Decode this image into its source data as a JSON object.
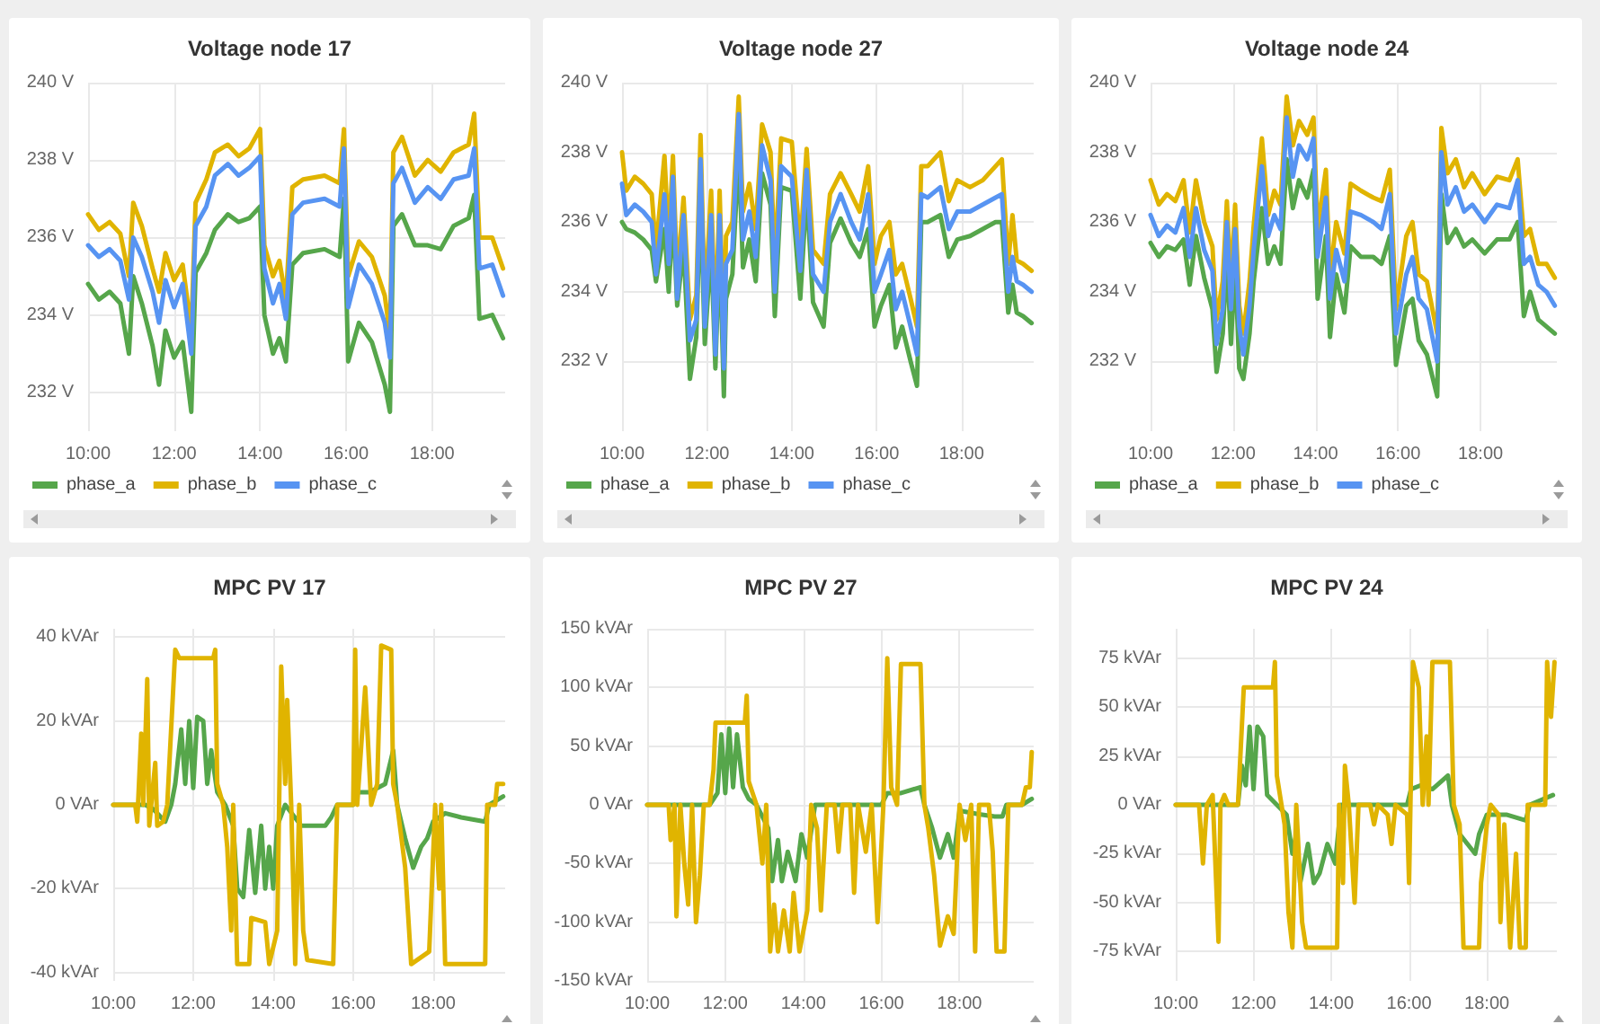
{
  "chart_data": [
    {
      "type": "line",
      "title": "Voltage node 17",
      "legend": "bottom",
      "grid": true,
      "xlim": [
        10,
        19.7
      ],
      "ylim": [
        231,
        240
      ],
      "xticks": [
        {
          "value": 10,
          "label": "10:00"
        },
        {
          "value": 12,
          "label": "12:00"
        },
        {
          "value": 14,
          "label": "14:00"
        },
        {
          "value": 16,
          "label": "16:00"
        },
        {
          "value": 18,
          "label": "18:00"
        }
      ],
      "yticks": [
        {
          "value": 232,
          "label": "232 V"
        },
        {
          "value": 234,
          "label": "234 V"
        },
        {
          "value": 236,
          "label": "236 V"
        },
        {
          "value": 238,
          "label": "238 V"
        },
        {
          "value": 240,
          "label": "240 V"
        }
      ],
      "x": [
        10,
        10.25,
        10.5,
        10.75,
        10.95,
        11.05,
        11.25,
        11.5,
        11.65,
        11.8,
        12,
        12.2,
        12.4,
        12.5,
        12.75,
        12.95,
        13.25,
        13.5,
        13.75,
        14,
        14.1,
        14.3,
        14.45,
        14.6,
        14.75,
        15,
        15.5,
        15.85,
        15.95,
        16.05,
        16.3,
        16.6,
        16.9,
        17.02,
        17.1,
        17.3,
        17.6,
        17.9,
        18.2,
        18.5,
        18.85,
        18.98,
        19.1,
        19.4,
        19.65
      ],
      "series": [
        {
          "name": "phase_a",
          "color": "#56a64b",
          "values": [
            234.8,
            234.4,
            234.6,
            234.3,
            233.0,
            235.0,
            234.3,
            233.2,
            232.2,
            233.6,
            232.9,
            233.3,
            231.5,
            235.1,
            235.6,
            236.2,
            236.6,
            236.4,
            236.5,
            236.8,
            234.0,
            233.0,
            233.4,
            232.8,
            235.3,
            235.6,
            235.7,
            235.5,
            237.0,
            232.8,
            233.8,
            233.3,
            232.2,
            231.5,
            236.3,
            236.6,
            235.8,
            235.8,
            235.7,
            236.3,
            236.5,
            237.1,
            233.9,
            234.0,
            233.4
          ]
        },
        {
          "name": "phase_b",
          "color": "#e0b400",
          "values": [
            236.6,
            236.2,
            236.4,
            236.1,
            235.0,
            236.9,
            236.3,
            235.2,
            234.6,
            235.6,
            234.9,
            235.3,
            233.6,
            236.9,
            237.5,
            238.2,
            238.4,
            238.1,
            238.3,
            238.8,
            235.8,
            235.0,
            235.4,
            234.4,
            237.3,
            237.5,
            237.6,
            237.4,
            238.8,
            235.0,
            235.9,
            235.5,
            234.5,
            233.5,
            238.2,
            238.6,
            237.6,
            238.0,
            237.7,
            238.2,
            238.4,
            239.2,
            236.0,
            236.0,
            235.2
          ]
        },
        {
          "name": "phase_c",
          "color": "#5794f2",
          "values": [
            235.8,
            235.5,
            235.7,
            235.4,
            234.4,
            236.0,
            235.5,
            234.6,
            233.8,
            234.9,
            234.2,
            234.8,
            233.0,
            236.3,
            236.8,
            237.6,
            237.9,
            237.6,
            237.8,
            238.1,
            235.2,
            234.3,
            234.8,
            233.9,
            236.6,
            236.9,
            237.0,
            236.8,
            238.3,
            234.2,
            235.3,
            234.8,
            233.8,
            232.9,
            237.4,
            237.8,
            236.9,
            237.3,
            237.0,
            237.5,
            237.6,
            238.3,
            235.2,
            235.3,
            234.5
          ]
        }
      ]
    },
    {
      "type": "line",
      "title": "Voltage node 27",
      "legend": "bottom",
      "grid": true,
      "xlim": [
        10,
        19.7
      ],
      "ylim": [
        230,
        240
      ],
      "xticks": [
        {
          "value": 10,
          "label": "10:00"
        },
        {
          "value": 12,
          "label": "12:00"
        },
        {
          "value": 14,
          "label": "14:00"
        },
        {
          "value": 16,
          "label": "16:00"
        },
        {
          "value": 18,
          "label": "18:00"
        }
      ],
      "yticks": [
        {
          "value": 232,
          "label": "232 V"
        },
        {
          "value": 234,
          "label": "234 V"
        },
        {
          "value": 236,
          "label": "236 V"
        },
        {
          "value": 238,
          "label": "238 V"
        },
        {
          "value": 240,
          "label": "240 V"
        }
      ],
      "x": [
        10,
        10.1,
        10.3,
        10.5,
        10.7,
        10.8,
        11.0,
        11.1,
        11.2,
        11.3,
        11.45,
        11.6,
        11.75,
        11.85,
        11.95,
        12.1,
        12.2,
        12.3,
        12.4,
        12.45,
        12.6,
        12.75,
        12.85,
        13.0,
        13.15,
        13.3,
        13.5,
        13.6,
        13.75,
        14.0,
        14.2,
        14.35,
        14.5,
        14.75,
        14.9,
        15.15,
        15.4,
        15.6,
        15.8,
        15.95,
        16.1,
        16.3,
        16.45,
        16.6,
        16.8,
        16.95,
        17.05,
        17.2,
        17.5,
        17.7,
        17.9,
        18.2,
        18.5,
        18.8,
        18.95,
        19.1,
        19.2,
        19.3,
        19.45,
        19.65
      ],
      "series": [
        {
          "name": "phase_a",
          "color": "#56a64b",
          "values": [
            236.0,
            235.8,
            235.7,
            235.5,
            235.2,
            234.3,
            235.8,
            234.0,
            236.3,
            233.6,
            235.3,
            231.5,
            232.7,
            236.8,
            232.5,
            235.3,
            231.8,
            235.4,
            231.0,
            233.8,
            234.5,
            238.0,
            234.7,
            235.5,
            234.3,
            237.4,
            236.5,
            233.3,
            237.0,
            236.9,
            233.8,
            236.9,
            233.7,
            233.0,
            235.4,
            236.1,
            235.4,
            235.0,
            235.8,
            233.0,
            233.6,
            234.2,
            232.4,
            233.0,
            232.0,
            231.3,
            236.0,
            236.0,
            236.2,
            235.0,
            235.5,
            235.6,
            235.8,
            236.0,
            236.0,
            233.4,
            234.2,
            233.4,
            233.3,
            233.1
          ]
        },
        {
          "name": "phase_b",
          "color": "#e0b400",
          "values": [
            238.0,
            236.9,
            237.3,
            237.1,
            236.8,
            235.2,
            237.9,
            235.5,
            237.9,
            234.4,
            236.7,
            233.2,
            233.9,
            238.5,
            233.6,
            236.9,
            232.9,
            236.9,
            232.4,
            235.6,
            236.0,
            239.6,
            236.3,
            237.1,
            235.8,
            238.8,
            238.0,
            234.8,
            238.4,
            238.3,
            235.3,
            238.1,
            235.2,
            234.8,
            236.8,
            237.4,
            236.8,
            236.3,
            237.6,
            234.8,
            235.6,
            236.0,
            234.5,
            234.8,
            233.8,
            233.0,
            237.6,
            237.6,
            238.0,
            236.6,
            237.2,
            237.0,
            237.2,
            237.6,
            237.8,
            234.8,
            236.2,
            234.9,
            234.8,
            234.6
          ]
        },
        {
          "name": "phase_c",
          "color": "#5794f2",
          "values": [
            237.1,
            236.2,
            236.5,
            236.3,
            236.0,
            234.5,
            236.8,
            234.8,
            237.3,
            233.8,
            236.2,
            232.6,
            233.2,
            237.8,
            233.0,
            236.2,
            232.2,
            236.2,
            231.8,
            234.8,
            235.2,
            239.1,
            235.5,
            236.3,
            235.0,
            238.2,
            237.2,
            234.0,
            237.6,
            237.3,
            234.6,
            237.5,
            234.5,
            234.0,
            236.0,
            236.8,
            236.0,
            235.5,
            236.8,
            234.0,
            234.5,
            235.2,
            233.5,
            234.0,
            233.0,
            232.2,
            236.8,
            236.7,
            237.0,
            235.8,
            236.3,
            236.3,
            236.5,
            236.7,
            236.8,
            234.0,
            235.0,
            234.3,
            234.2,
            234.0
          ]
        }
      ]
    },
    {
      "type": "line",
      "title": "Voltage node 24",
      "legend": "bottom",
      "grid": true,
      "xlim": [
        10,
        19.85
      ],
      "ylim": [
        230,
        240
      ],
      "xticks": [
        {
          "value": 10,
          "label": "10:00"
        },
        {
          "value": 12,
          "label": "12:00"
        },
        {
          "value": 14,
          "label": "14:00"
        },
        {
          "value": 16,
          "label": "16:00"
        },
        {
          "value": 18,
          "label": "18:00"
        }
      ],
      "yticks": [
        {
          "value": 232,
          "label": "232 V"
        },
        {
          "value": 234,
          "label": "234 V"
        },
        {
          "value": 236,
          "label": "236 V"
        },
        {
          "value": 238,
          "label": "238 V"
        },
        {
          "value": 240,
          "label": "240 V"
        }
      ],
      "x": [
        10,
        10.2,
        10.4,
        10.6,
        10.8,
        10.95,
        11.1,
        11.3,
        11.5,
        11.6,
        11.75,
        11.85,
        11.95,
        12.05,
        12.15,
        12.25,
        12.4,
        12.5,
        12.7,
        12.85,
        13.0,
        13.15,
        13.3,
        13.45,
        13.6,
        13.8,
        13.95,
        14.05,
        14.25,
        14.35,
        14.5,
        14.7,
        14.85,
        15.1,
        15.4,
        15.6,
        15.8,
        15.95,
        16.2,
        16.35,
        16.5,
        16.7,
        16.95,
        17.05,
        17.2,
        17.4,
        17.6,
        17.8,
        18.1,
        18.4,
        18.7,
        18.9,
        19.05,
        19.2,
        19.4,
        19.6,
        19.8
      ],
      "series": [
        {
          "name": "phase_a",
          "color": "#56a64b",
          "values": [
            235.4,
            235.0,
            235.3,
            235.2,
            235.5,
            234.2,
            235.6,
            234.4,
            233.5,
            231.7,
            232.8,
            235.0,
            232.5,
            234.9,
            231.8,
            231.5,
            232.8,
            234.3,
            236.4,
            234.8,
            235.3,
            234.8,
            237.8,
            236.4,
            237.2,
            236.7,
            237.5,
            233.8,
            235.6,
            232.7,
            234.5,
            233.4,
            235.3,
            235.0,
            235.0,
            234.8,
            235.6,
            231.9,
            233.6,
            233.8,
            232.6,
            232.2,
            231.0,
            236.8,
            235.4,
            235.8,
            235.3,
            235.5,
            235.1,
            235.5,
            235.5,
            236.0,
            233.3,
            234.0,
            233.2,
            233.0,
            232.8
          ]
        },
        {
          "name": "phase_b",
          "color": "#e0b400",
          "values": [
            237.2,
            236.5,
            236.8,
            236.6,
            237.2,
            235.7,
            237.2,
            236.0,
            235.3,
            233.2,
            234.3,
            236.6,
            234.2,
            236.5,
            233.6,
            232.8,
            234.3,
            235.9,
            238.4,
            236.2,
            236.9,
            236.5,
            239.6,
            238.2,
            238.9,
            238.5,
            239.0,
            235.8,
            237.5,
            234.4,
            236.0,
            235.1,
            237.1,
            236.9,
            236.7,
            236.6,
            237.5,
            233.5,
            235.6,
            236.0,
            234.5,
            234.3,
            232.8,
            238.7,
            237.4,
            237.8,
            237.0,
            237.4,
            236.8,
            237.3,
            237.2,
            237.8,
            235.6,
            235.8,
            234.8,
            234.8,
            234.4
          ]
        },
        {
          "name": "phase_c",
          "color": "#5794f2",
          "values": [
            236.2,
            235.6,
            235.9,
            235.7,
            236.4,
            235.0,
            236.4,
            235.2,
            234.6,
            232.5,
            233.5,
            236.0,
            233.5,
            235.8,
            233.0,
            232.2,
            233.6,
            235.2,
            237.6,
            235.6,
            236.2,
            235.8,
            239.0,
            237.3,
            238.2,
            237.8,
            238.4,
            235.0,
            236.7,
            233.8,
            235.2,
            234.3,
            236.3,
            236.2,
            236.0,
            235.8,
            236.8,
            232.8,
            234.5,
            235.0,
            233.8,
            233.5,
            232.0,
            238.0,
            236.5,
            237.0,
            236.3,
            236.5,
            236.0,
            236.5,
            236.4,
            237.2,
            234.8,
            235.0,
            234.2,
            234.0,
            233.6
          ]
        }
      ]
    },
    {
      "type": "line",
      "title": "MPC PV 17",
      "legend": false,
      "grid": true,
      "xlim": [
        10,
        19.8
      ],
      "ylim": [
        -42,
        42
      ],
      "xticks": [
        {
          "value": 10,
          "label": "10:00"
        },
        {
          "value": 12,
          "label": "12:00"
        },
        {
          "value": 14,
          "label": "14:00"
        },
        {
          "value": 16,
          "label": "16:00"
        },
        {
          "value": 18,
          "label": "18:00"
        }
      ],
      "yticks": [
        {
          "value": -40,
          "label": "-40 kVAr"
        },
        {
          "value": -20,
          "label": "-20 kVAr"
        },
        {
          "value": 0,
          "label": "0 VAr"
        },
        {
          "value": 20,
          "label": "20 kVAr"
        },
        {
          "value": 40,
          "label": "40 kVAr"
        }
      ],
      "series": [
        {
          "color": "#56a64b",
          "x": [
            10,
            10.8,
            11.0,
            11.3,
            11.45,
            11.55,
            11.7,
            11.8,
            11.9,
            12.0,
            12.1,
            12.25,
            12.35,
            12.45,
            12.6,
            12.8,
            13.0,
            13.1,
            13.25,
            13.4,
            13.55,
            13.7,
            13.8,
            13.9,
            14.0,
            14.1,
            14.3,
            14.7,
            15.0,
            15.3,
            15.45,
            15.6,
            16.0,
            16.1,
            16.4,
            16.8,
            17.0,
            17.1,
            17.3,
            17.5,
            17.7,
            17.85,
            18.0,
            18.3,
            18.7,
            19.3,
            19.4,
            19.75
          ],
          "values": [
            0,
            0,
            -1,
            -4,
            0,
            5,
            18,
            5,
            20,
            4,
            21,
            20,
            5,
            13,
            3,
            0,
            -5,
            -20,
            -22,
            -6,
            -21,
            -5,
            -20,
            -10,
            -20,
            -5,
            0,
            -5,
            -5,
            -5,
            -3,
            0,
            0,
            3,
            3,
            5,
            13,
            0,
            -8,
            -15,
            -10,
            -8,
            -4,
            -2,
            -3,
            -4,
            0,
            2
          ]
        },
        {
          "color": "#e0b400",
          "x": [
            10,
            10.55,
            10.6,
            10.7,
            10.75,
            10.85,
            10.9,
            11.05,
            11.1,
            11.25,
            11.35,
            11.55,
            11.65,
            12.5,
            12.55,
            12.6,
            12.75,
            12.85,
            12.95,
            13.0,
            13.1,
            13.4,
            13.45,
            13.8,
            13.9,
            14.1,
            14.2,
            14.3,
            14.35,
            14.45,
            14.55,
            14.65,
            14.75,
            14.85,
            15.5,
            15.6,
            16.0,
            16.05,
            16.1,
            16.3,
            16.45,
            16.6,
            16.7,
            16.95,
            17.0,
            17.1,
            17.3,
            17.45,
            17.9,
            18.05,
            18.15,
            18.2,
            18.3,
            19.3,
            19.35,
            19.55,
            19.6,
            19.75
          ],
          "values": [
            0,
            0,
            -4,
            17,
            0,
            30,
            -5,
            10,
            -5,
            -4,
            0,
            37,
            35,
            35,
            37,
            5,
            0,
            -10,
            -30,
            0,
            -38,
            -38,
            -27,
            -28,
            -38,
            -30,
            33,
            5,
            25,
            0,
            -38,
            0,
            -30,
            -37,
            -38,
            0,
            0,
            37,
            0,
            28,
            0,
            5,
            38,
            37,
            5,
            0,
            -15,
            -38,
            -35,
            0,
            -20,
            0,
            -38,
            -38,
            0,
            0,
            5,
            5
          ]
        }
      ]
    },
    {
      "type": "line",
      "title": "MPC PV 27",
      "legend": false,
      "grid": true,
      "xlim": [
        10,
        19.9
      ],
      "ylim": [
        -150,
        150
      ],
      "xticks": [
        {
          "value": 10,
          "label": "10:00"
        },
        {
          "value": 12,
          "label": "12:00"
        },
        {
          "value": 14,
          "label": "14:00"
        },
        {
          "value": 16,
          "label": "16:00"
        },
        {
          "value": 18,
          "label": "18:00"
        }
      ],
      "yticks": [
        {
          "value": -150,
          "label": "-150 kVAr"
        },
        {
          "value": -100,
          "label": "-100 kVAr"
        },
        {
          "value": -50,
          "label": "-50 kVAr"
        },
        {
          "value": 0,
          "label": "0 VAr"
        },
        {
          "value": 50,
          "label": "50 kVAr"
        },
        {
          "value": 100,
          "label": "100 kVAr"
        },
        {
          "value": 150,
          "label": "150 kVAr"
        }
      ],
      "series": [
        {
          "color": "#56a64b",
          "x": [
            10,
            11.6,
            11.8,
            11.9,
            12.0,
            12.1,
            12.2,
            12.3,
            12.45,
            12.6,
            12.8,
            13.1,
            13.2,
            13.35,
            13.45,
            13.6,
            13.8,
            13.95,
            14.1,
            14.3,
            16.0,
            16.15,
            16.5,
            17.0,
            17.1,
            17.3,
            17.5,
            17.7,
            17.85,
            18.0,
            18.5,
            18.9,
            19.1,
            19.2,
            19.6,
            19.85
          ],
          "values": [
            0,
            0,
            10,
            60,
            10,
            65,
            15,
            60,
            15,
            5,
            0,
            -20,
            -65,
            -30,
            -65,
            -40,
            -65,
            -25,
            -45,
            0,
            0,
            10,
            10,
            15,
            0,
            -20,
            -45,
            -25,
            -45,
            -5,
            -8,
            -10,
            -10,
            0,
            0,
            5
          ]
        },
        {
          "color": "#e0b400",
          "x": [
            10,
            10.55,
            10.6,
            10.7,
            10.75,
            10.85,
            10.95,
            11.05,
            11.15,
            11.25,
            11.35,
            11.45,
            11.6,
            11.7,
            11.75,
            12.5,
            12.55,
            12.6,
            12.8,
            12.95,
            13.05,
            13.15,
            13.25,
            13.35,
            13.5,
            13.65,
            13.75,
            13.9,
            14.1,
            14.2,
            14.35,
            14.45,
            14.6,
            14.8,
            14.9,
            15.0,
            15.2,
            15.3,
            15.4,
            15.6,
            15.75,
            15.9,
            16.05,
            16.15,
            16.25,
            16.4,
            16.5,
            17.0,
            17.1,
            17.2,
            17.35,
            17.5,
            17.7,
            17.85,
            18.0,
            18.15,
            18.3,
            18.4,
            18.5,
            18.75,
            18.85,
            18.95,
            19.15,
            19.25,
            19.6,
            19.7,
            19.8,
            19.85
          ],
          "values": [
            0,
            0,
            -30,
            0,
            -95,
            0,
            -50,
            -85,
            0,
            -100,
            -60,
            0,
            0,
            30,
            70,
            70,
            93,
            20,
            0,
            -50,
            0,
            -125,
            -85,
            -125,
            -90,
            -125,
            -75,
            -125,
            -90,
            0,
            -20,
            -90,
            0,
            0,
            -40,
            0,
            0,
            -75,
            0,
            -40,
            0,
            -100,
            0,
            125,
            15,
            0,
            120,
            120,
            0,
            -20,
            -60,
            -120,
            -95,
            -110,
            0,
            -30,
            0,
            -125,
            0,
            0,
            -40,
            -125,
            -125,
            0,
            0,
            15,
            15,
            45
          ]
        }
      ]
    },
    {
      "type": "line",
      "title": "MPC PV 24",
      "legend": false,
      "grid": true,
      "xlim": [
        10,
        19.8
      ],
      "ylim": [
        -90,
        90
      ],
      "xticks": [
        {
          "value": 10,
          "label": "10:00"
        },
        {
          "value": 12,
          "label": "12:00"
        },
        {
          "value": 14,
          "label": "14:00"
        },
        {
          "value": 16,
          "label": "16:00"
        },
        {
          "value": 18,
          "label": "18:00"
        }
      ],
      "yticks": [
        {
          "value": -75,
          "label": "-75 kVAr"
        },
        {
          "value": -50,
          "label": "-50 kVAr"
        },
        {
          "value": -25,
          "label": "-25 kVAr"
        },
        {
          "value": 0,
          "label": "0 VAr"
        },
        {
          "value": 25,
          "label": "25 kVAr"
        },
        {
          "value": 50,
          "label": "50 kVAr"
        },
        {
          "value": 75,
          "label": "75 kVAr"
        }
      ],
      "series": [
        {
          "color": "#56a64b",
          "x": [
            10,
            11.6,
            11.7,
            11.8,
            11.9,
            12.0,
            12.1,
            12.25,
            12.35,
            12.6,
            12.85,
            13.0,
            13.1,
            13.2,
            13.4,
            13.55,
            13.7,
            13.9,
            14.1,
            14.25,
            15.95,
            16.05,
            16.3,
            16.6,
            17.0,
            17.1,
            17.3,
            17.5,
            17.7,
            17.8,
            18.0,
            18.5,
            19.0,
            19.1,
            19.7
          ],
          "values": [
            0,
            0,
            20,
            10,
            40,
            8,
            40,
            35,
            5,
            0,
            -5,
            -25,
            -15,
            -40,
            -20,
            -40,
            -35,
            -20,
            -30,
            0,
            0,
            8,
            10,
            8,
            15,
            0,
            -15,
            -20,
            -25,
            -15,
            -5,
            -5,
            -8,
            0,
            5
          ]
        },
        {
          "color": "#e0b400",
          "x": [
            10,
            10.6,
            10.7,
            10.8,
            10.95,
            11.0,
            11.1,
            11.15,
            11.25,
            11.35,
            11.6,
            11.75,
            12.5,
            12.55,
            12.6,
            12.8,
            12.9,
            13.0,
            13.1,
            13.25,
            13.35,
            14.15,
            14.2,
            14.3,
            14.35,
            14.45,
            14.6,
            14.7,
            15.0,
            15.1,
            15.2,
            15.45,
            15.55,
            15.65,
            15.95,
            16.0,
            16.1,
            16.25,
            16.35,
            16.45,
            16.5,
            16.6,
            17.05,
            17.15,
            17.3,
            17.4,
            17.8,
            17.85,
            18.0,
            18.1,
            18.3,
            18.35,
            18.45,
            18.6,
            18.75,
            18.85,
            19.0,
            19.05,
            19.5,
            19.55,
            19.65,
            19.74
          ],
          "values": [
            0,
            0,
            -30,
            0,
            5,
            -20,
            -70,
            0,
            5,
            0,
            0,
            60,
            60,
            73,
            15,
            -10,
            -55,
            -73,
            0,
            -60,
            -73,
            -73,
            0,
            -40,
            20,
            0,
            -50,
            0,
            0,
            -10,
            0,
            -5,
            -20,
            0,
            -5,
            -40,
            73,
            60,
            0,
            35,
            0,
            73,
            73,
            0,
            -10,
            -73,
            -73,
            -40,
            -10,
            0,
            -5,
            -60,
            -10,
            -73,
            -25,
            -73,
            -73,
            0,
            0,
            73,
            45,
            73
          ]
        }
      ]
    }
  ]
}
